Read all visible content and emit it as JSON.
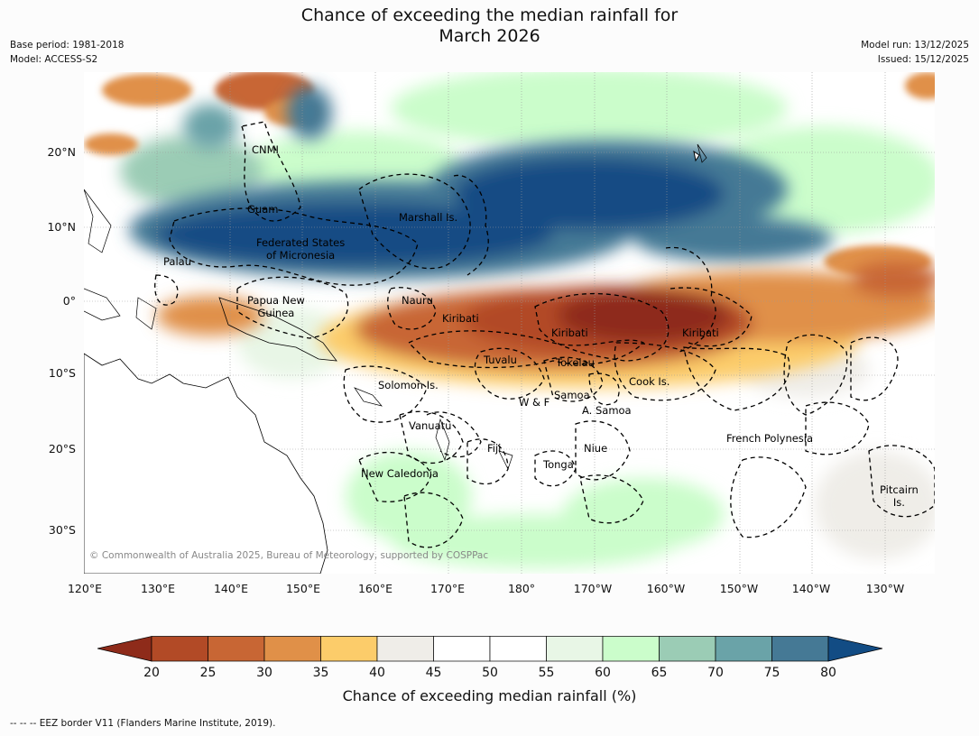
{
  "title_line1": "Chance of exceeding the median rainfall for",
  "title_line2": "March 2026",
  "meta_left": [
    "Base period: 1981-2018",
    "Model: ACCESS-S2"
  ],
  "meta_right": [
    "Model run: 13/12/2025",
    "Issued: 15/12/2025"
  ],
  "lat_labels": [
    "20°N",
    "10°N",
    "0°",
    "10°S",
    "20°S",
    "30°S"
  ],
  "lon_labels": [
    "120°E",
    "130°E",
    "140°E",
    "150°E",
    "160°E",
    "170°E",
    "180°",
    "170°W",
    "160°W",
    "150°W",
    "140°W",
    "130°W"
  ],
  "regions": {
    "cnmi": "CNMI",
    "guam": "Guam",
    "marshall": "Marshall Is.",
    "fsm_1": "Federated States",
    "fsm_2": "of Micronesia",
    "palau": "Palau",
    "png_1": "Papua New",
    "png_2": "Guinea",
    "nauru": "Nauru",
    "kiribati_w": "Kiribati",
    "kiribati_c": "Kiribati",
    "kiribati_e": "Kiribati",
    "tuvalu": "Tuvalu",
    "tokelau": "Tokelau",
    "cook": "Cook Is.",
    "solomon": "Solomon Is.",
    "wf": "W & F",
    "samoa": "Samoa",
    "asamoa": "A. Samoa",
    "vanuatu": "Vanuatu",
    "fiji": "Fiji",
    "niue": "Niue",
    "french_polynesia": "French Polynesia",
    "tonga": "Tonga",
    "new_caledonia": "New Caledonia",
    "pitcairn_1": "Pitcairn",
    "pitcairn_2": "Is."
  },
  "copyright": "© Commonwealth of Australia 2025, Bureau of Meteorology, supported by COSPPac",
  "colorbar": {
    "ticks": [
      "20",
      "25",
      "30",
      "35",
      "40",
      "45",
      "50",
      "55",
      "60",
      "65",
      "70",
      "75",
      "80"
    ],
    "colors": [
      "#8e2b1a",
      "#b24a26",
      "#c86634",
      "#e09048",
      "#fccc6a",
      "#efede8",
      "#ffffff",
      "#ffffff",
      "#e8f6e6",
      "#cbfdcb",
      "#9bccb5",
      "#6aa3a8",
      "#457995",
      "#124c84"
    ],
    "label": "Chance of exceeding median rainfall (%)"
  },
  "footer": "--  --  -- EEZ border V11 (Flanders Marine Institute, 2019)."
}
